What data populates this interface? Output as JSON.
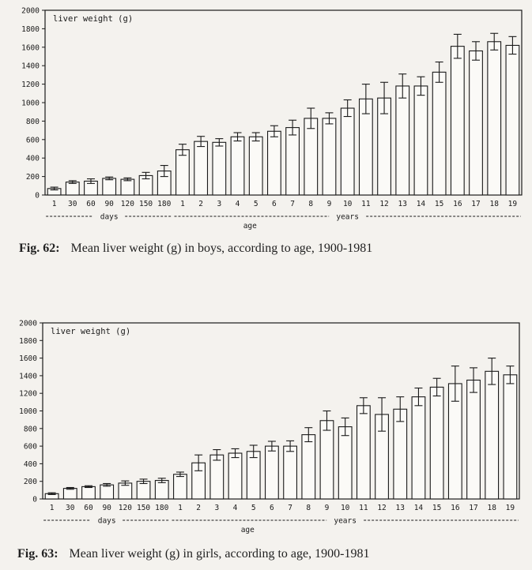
{
  "chart_data": [
    {
      "type": "bar",
      "title": "liver weight (g)",
      "xlabel": "age",
      "ylabel": "",
      "ylim": [
        0,
        2000
      ],
      "yticks": [
        0,
        200,
        400,
        600,
        800,
        1000,
        1200,
        1400,
        1600,
        1800,
        2000
      ],
      "categories": [
        "1",
        "30",
        "60",
        "90",
        "120",
        "150",
        "180",
        "1",
        "2",
        "3",
        "4",
        "5",
        "6",
        "7",
        "8",
        "9",
        "10",
        "11",
        "12",
        "13",
        "14",
        "15",
        "16",
        "17",
        "18",
        "19"
      ],
      "groups": [
        {
          "label": "days",
          "from": 0,
          "to": 6
        },
        {
          "label": "years",
          "from": 7,
          "to": 25
        }
      ],
      "values": [
        70,
        140,
        150,
        180,
        170,
        210,
        260,
        490,
        580,
        570,
        630,
        630,
        690,
        730,
        830,
        830,
        940,
        1040,
        1050,
        1180,
        1180,
        1330,
        1610,
        1560,
        1660,
        1620
      ],
      "error": [
        15,
        15,
        25,
        15,
        15,
        35,
        60,
        60,
        55,
        40,
        45,
        45,
        60,
        80,
        110,
        60,
        90,
        160,
        170,
        130,
        100,
        110,
        130,
        100,
        90,
        95
      ],
      "caption_num": "Fig. 62:",
      "caption_text": "Mean liver weight (g) in boys, according to age, 1900-1981"
    },
    {
      "type": "bar",
      "title": "liver weight (g)",
      "xlabel": "age",
      "ylabel": "",
      "ylim": [
        0,
        2000
      ],
      "yticks": [
        0,
        200,
        400,
        600,
        800,
        1000,
        1200,
        1400,
        1600,
        1800,
        2000
      ],
      "categories": [
        "1",
        "30",
        "60",
        "90",
        "120",
        "150",
        "180",
        "1",
        "2",
        "3",
        "4",
        "5",
        "6",
        "7",
        "8",
        "9",
        "10",
        "11",
        "12",
        "13",
        "14",
        "15",
        "16",
        "17",
        "18",
        "19"
      ],
      "groups": [
        {
          "label": "days",
          "from": 0,
          "to": 6
        },
        {
          "label": "years",
          "from": 7,
          "to": 25
        }
      ],
      "values": [
        60,
        120,
        140,
        160,
        180,
        200,
        210,
        280,
        410,
        500,
        520,
        540,
        600,
        600,
        730,
        890,
        820,
        1060,
        960,
        1020,
        1160,
        1270,
        1310,
        1350,
        1450,
        1410
      ],
      "error": [
        10,
        10,
        10,
        15,
        25,
        25,
        25,
        25,
        90,
        60,
        50,
        70,
        55,
        60,
        80,
        110,
        100,
        90,
        190,
        140,
        100,
        100,
        200,
        140,
        150,
        100
      ],
      "caption_num": "Fig. 63:",
      "caption_text": "Mean liver weight (g) in girls, according to age, 1900-1981"
    }
  ]
}
